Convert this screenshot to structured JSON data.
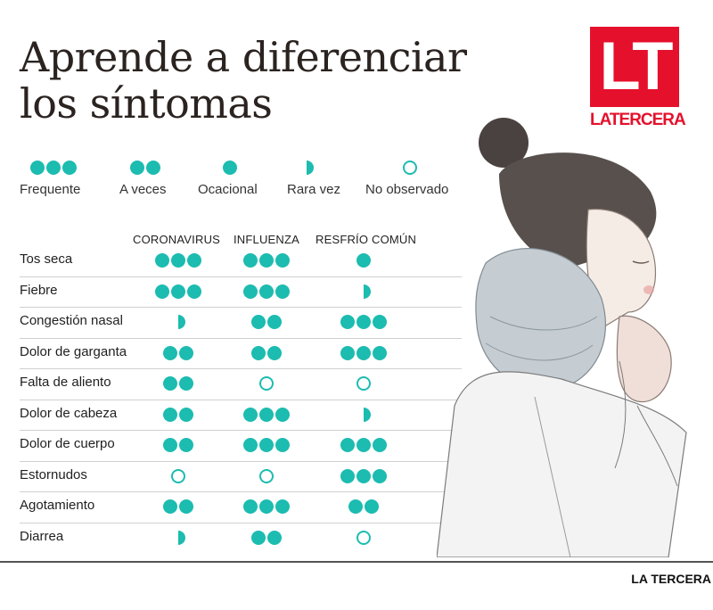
{
  "title": {
    "line1": "Aprende a diferenciar",
    "line2": "los síntomas"
  },
  "logo": {
    "letters": "LT",
    "word": "LATERCERA"
  },
  "colors": {
    "accent": "#1cbcb0",
    "brand": "#e5102c"
  },
  "legend": [
    {
      "label": "Frequente",
      "level": "3"
    },
    {
      "label": "A veces",
      "level": "2"
    },
    {
      "label": "Ocacional",
      "level": "1"
    },
    {
      "label": "Rara vez",
      "level": "half"
    },
    {
      "label": "No observado",
      "level": "0"
    }
  ],
  "columns": [
    "CORONAVIRUS",
    "INFLUENZA",
    "RESFRÍO COMÚN"
  ],
  "rows": [
    {
      "label": "Tos seca",
      "values": [
        "3",
        "3",
        "1"
      ]
    },
    {
      "label": "Fiebre",
      "values": [
        "3",
        "3",
        "half"
      ]
    },
    {
      "label": "Congestión nasal",
      "values": [
        "half",
        "2",
        "3"
      ]
    },
    {
      "label": "Dolor de garganta",
      "values": [
        "2",
        "2",
        "3"
      ]
    },
    {
      "label": "Falta de aliento",
      "values": [
        "2",
        "0",
        "0"
      ]
    },
    {
      "label": "Dolor de cabeza",
      "values": [
        "2",
        "3",
        "half"
      ]
    },
    {
      "label": "Dolor de cuerpo",
      "values": [
        "2",
        "3",
        "3"
      ]
    },
    {
      "label": "Estornudos",
      "values": [
        "0",
        "0",
        "3"
      ]
    },
    {
      "label": "Agotamiento",
      "values": [
        "2",
        "3",
        "2"
      ]
    },
    {
      "label": "Diarrea",
      "values": [
        "half",
        "2",
        "0"
      ]
    }
  ],
  "footer": {
    "credit": "LA TERCERA"
  },
  "illustration": {
    "icon": "woman-coughing-illustration"
  }
}
